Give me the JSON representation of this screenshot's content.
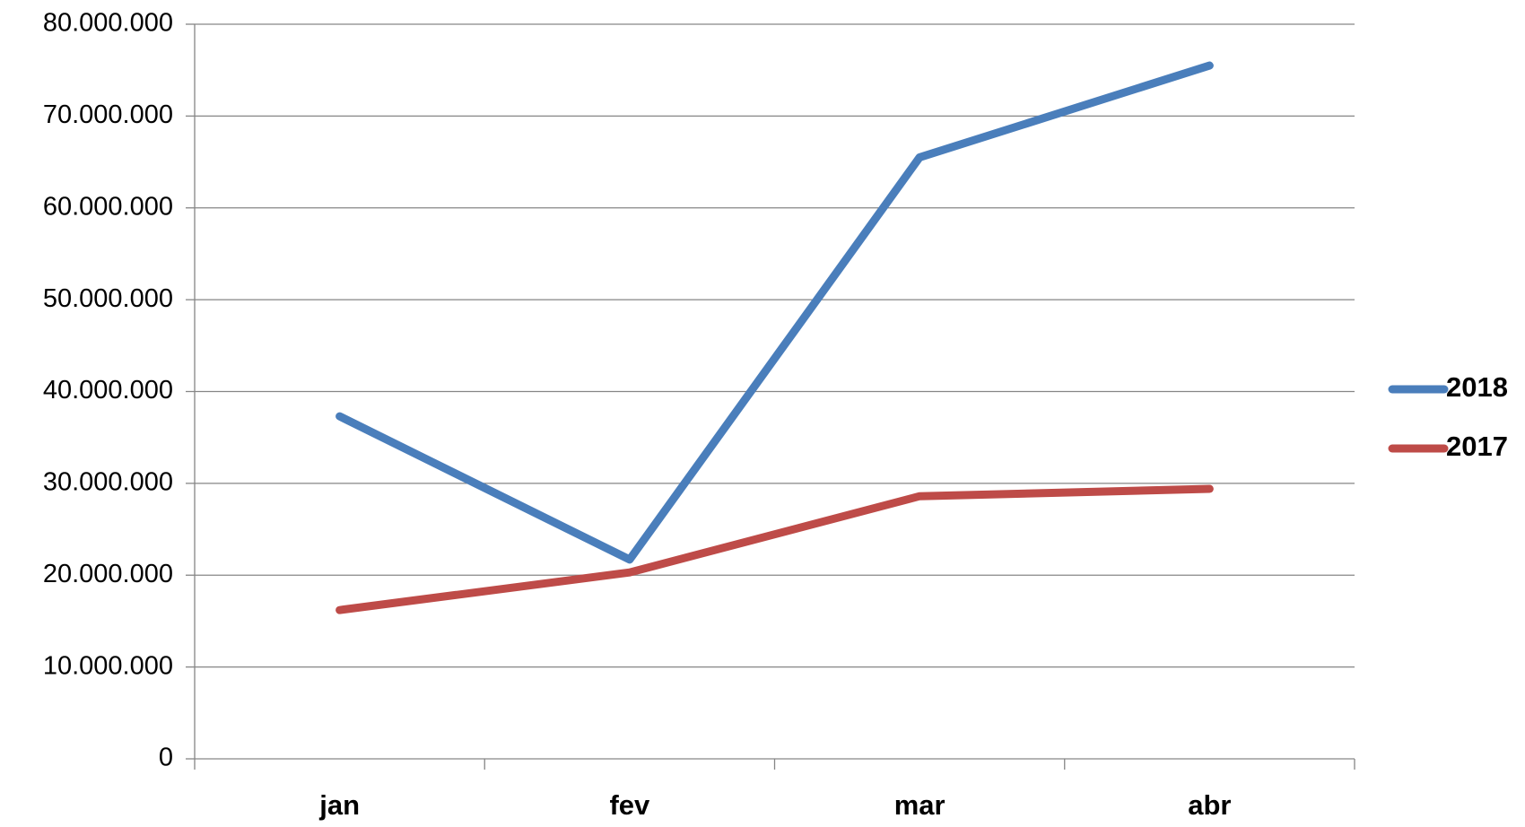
{
  "chart_data": {
    "type": "line",
    "categories": [
      "jan",
      "fev",
      "mar",
      "abr"
    ],
    "series": [
      {
        "name": "2018",
        "color": "#4a7ebb",
        "values": [
          37300000,
          21700000,
          65500000,
          75500000
        ]
      },
      {
        "name": "2017",
        "color": "#be4b48",
        "values": [
          16200000,
          20300000,
          28600000,
          29400000
        ]
      }
    ],
    "ylim": [
      0,
      80000000
    ],
    "yticks": [
      0,
      {
        "value": 10000000,
        "label": "10.000.000"
      },
      {
        "value": 20000000,
        "label": "20.000.000"
      },
      {
        "value": 30000000,
        "label": "30.000.000"
      },
      {
        "value": 40000000,
        "label": "40.000.000"
      },
      {
        "value": 50000000,
        "label": "50.000.000"
      },
      {
        "value": 60000000,
        "label": "60.000.000"
      },
      {
        "value": 70000000,
        "label": "70.000.000"
      },
      {
        "value": 80000000,
        "label": "80.000.000"
      }
    ],
    "grid": true,
    "legend": "right"
  }
}
